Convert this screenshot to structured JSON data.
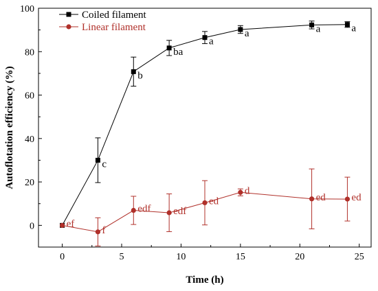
{
  "chart_data": {
    "type": "line",
    "xlabel": "Time (h)",
    "ylabel": "Autoflotation efficiency (%)",
    "xlim": [
      -2,
      26
    ],
    "ylim": [
      -10,
      100
    ],
    "xticks": [
      0,
      5,
      10,
      15,
      20,
      25
    ],
    "yticks": [
      0,
      20,
      40,
      60,
      80,
      100
    ],
    "grid": false,
    "legend_position": "top-left",
    "series": [
      {
        "name": "Coiled filament",
        "color": "#000000",
        "marker": "square",
        "points": [
          {
            "x": 0,
            "y": 0,
            "err": 0,
            "label": ""
          },
          {
            "x": 3,
            "y": 30,
            "err": 10.3,
            "label": "c"
          },
          {
            "x": 6,
            "y": 70.8,
            "err": 6.7,
            "label": "b"
          },
          {
            "x": 9,
            "y": 81.7,
            "err": 3.5,
            "label": "ba"
          },
          {
            "x": 12,
            "y": 86.5,
            "err": 2.8,
            "label": "a"
          },
          {
            "x": 15,
            "y": 90.2,
            "err": 1.8,
            "label": "a"
          },
          {
            "x": 21,
            "y": 92.3,
            "err": 1.8,
            "label": "a"
          },
          {
            "x": 24,
            "y": 92.5,
            "err": 1.3,
            "label": "a"
          }
        ]
      },
      {
        "name": "Linear filament",
        "color": "#b0302a",
        "marker": "circle",
        "points": [
          {
            "x": 0,
            "y": 0,
            "err": 0,
            "label": "ef"
          },
          {
            "x": 3,
            "y": -3,
            "err": 6.5,
            "label": "f"
          },
          {
            "x": 6,
            "y": 6.9,
            "err": 6.5,
            "label": "edf"
          },
          {
            "x": 9,
            "y": 5.8,
            "err": 8.7,
            "label": "edf"
          },
          {
            "x": 12,
            "y": 10.4,
            "err": 10.2,
            "label": "ed"
          },
          {
            "x": 15,
            "y": 15.2,
            "err": 1.6,
            "label": "d"
          },
          {
            "x": 21,
            "y": 12.2,
            "err": 13.8,
            "label": "ed"
          },
          {
            "x": 24,
            "y": 12.1,
            "err": 10.1,
            "label": "ed"
          }
        ]
      }
    ]
  }
}
